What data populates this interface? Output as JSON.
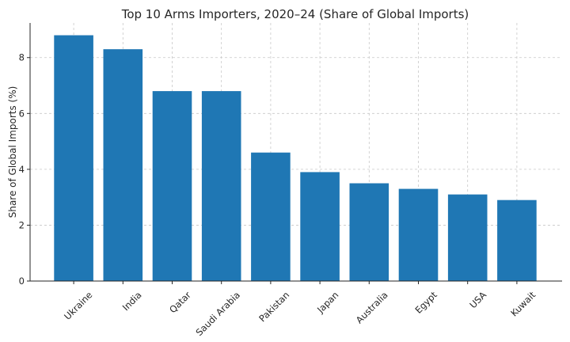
{
  "chart_data": {
    "type": "bar",
    "title": "Top 10 Arms Importers, 2020–24 (Share of Global Imports)",
    "xlabel": "",
    "ylabel": "Share of Global Imports (%)",
    "categories": [
      "Ukraine",
      "India",
      "Qatar",
      "Saudi Arabia",
      "Pakistan",
      "Japan",
      "Australia",
      "Egypt",
      "USA",
      "Kuwait"
    ],
    "values": [
      8.8,
      8.3,
      6.8,
      6.8,
      4.6,
      3.9,
      3.5,
      3.3,
      3.1,
      2.9
    ],
    "ylim": [
      0,
      9.24
    ],
    "yticks": [
      0,
      2,
      4,
      6,
      8
    ],
    "grid": true,
    "bar_color": "#1f77b4"
  }
}
